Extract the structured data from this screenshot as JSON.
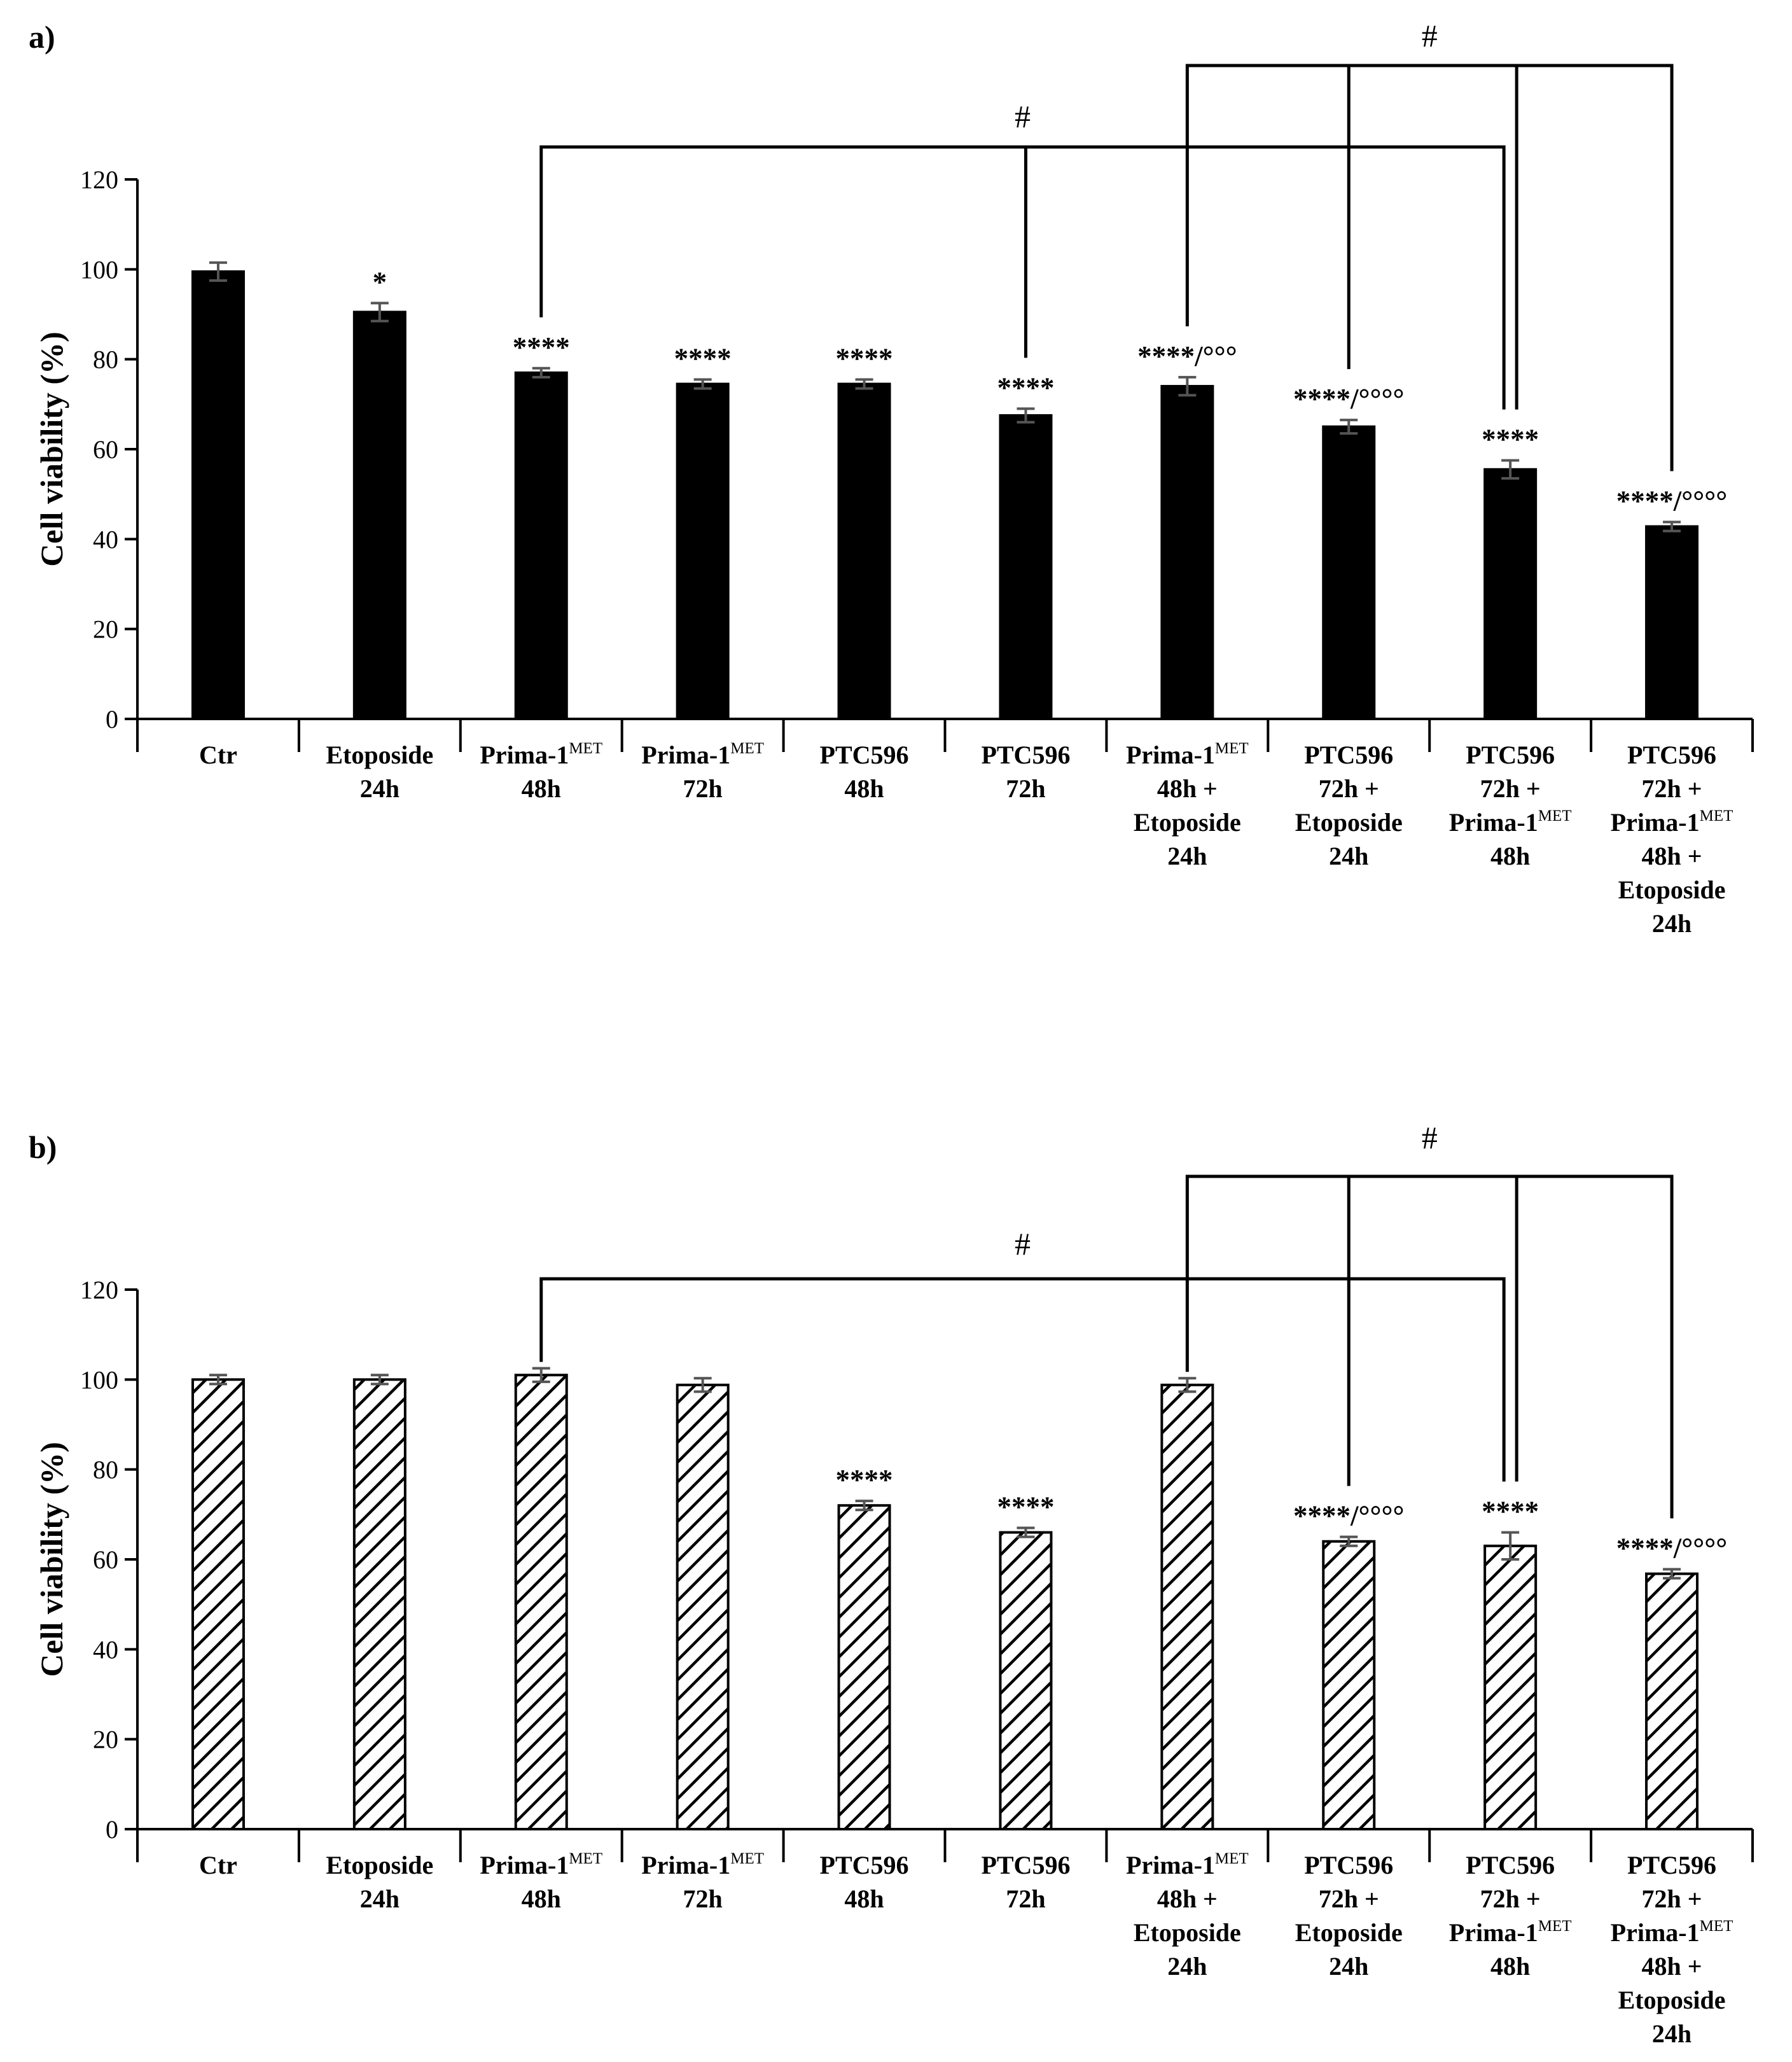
{
  "colors": {
    "solid_bar": "#000000",
    "hatch_bar_fill": "#ffffff",
    "hatch_stroke": "#000000",
    "error_bar": "#555555"
  },
  "chart_data": [
    {
      "type": "bar",
      "panel_label": "a)",
      "pattern": "solid",
      "ylabel": "Cell viability (%)",
      "ylim": [
        0,
        120
      ],
      "yticks": [
        0,
        20,
        40,
        60,
        80,
        100,
        120
      ],
      "grid": false,
      "categories": [
        [
          {
            "text": "Ctr"
          }
        ],
        [
          {
            "text": "Etoposide"
          },
          {
            "text": "24h"
          }
        ],
        [
          {
            "text": "Prima-1",
            "sup": "MET"
          },
          {
            "text": "48h"
          }
        ],
        [
          {
            "text": "Prima-1",
            "sup": "MET"
          },
          {
            "text": "72h"
          }
        ],
        [
          {
            "text": "PTC596"
          },
          {
            "text": "48h"
          }
        ],
        [
          {
            "text": "PTC596"
          },
          {
            "text": "72h"
          }
        ],
        [
          {
            "text": "Prima-1",
            "sup": "MET"
          },
          {
            "text": "48h +"
          },
          {
            "text": "Etoposide"
          },
          {
            "text": "24h"
          }
        ],
        [
          {
            "text": "PTC596"
          },
          {
            "text": "72h +"
          },
          {
            "text": "Etoposide"
          },
          {
            "text": "24h"
          }
        ],
        [
          {
            "text": "PTC596"
          },
          {
            "text": "72h +"
          },
          {
            "text": "Prima-1",
            "sup": "MET"
          },
          {
            "text": "48h"
          }
        ],
        [
          {
            "text": "PTC596"
          },
          {
            "text": "72h +"
          },
          {
            "text": "Prima-1",
            "sup": "MET"
          },
          {
            "text": "48h +"
          },
          {
            "text": "Etoposide"
          },
          {
            "text": "24h"
          }
        ]
      ],
      "values": [
        99.5,
        90.5,
        77,
        74.5,
        74.5,
        67.5,
        74,
        65,
        55.5,
        42.8
      ],
      "errors": [
        2,
        2,
        1,
        1,
        1,
        1.5,
        2,
        1.5,
        2,
        1
      ],
      "significance": [
        "",
        "*",
        "****",
        "****",
        "****",
        "****",
        "****/°°°",
        "****/°°°°",
        "****",
        "****/°°°°"
      ],
      "comparison_brackets": [
        {
          "label": "#",
          "from": 2,
          "to": 8,
          "middle": [
            5
          ]
        },
        {
          "label": "#",
          "from": 6,
          "to": 9,
          "middle": [
            7,
            8
          ]
        }
      ]
    },
    {
      "type": "bar",
      "panel_label": "b)",
      "pattern": "hatched",
      "ylabel": "Cell viability (%)",
      "ylim": [
        0,
        120
      ],
      "yticks": [
        0,
        20,
        40,
        60,
        80,
        100,
        120
      ],
      "grid": false,
      "categories": [
        [
          {
            "text": "Ctr"
          }
        ],
        [
          {
            "text": "Etoposide"
          },
          {
            "text": "24h"
          }
        ],
        [
          {
            "text": "Prima-1",
            "sup": "MET"
          },
          {
            "text": "48h"
          }
        ],
        [
          {
            "text": "Prima-1",
            "sup": "MET"
          },
          {
            "text": "72h"
          }
        ],
        [
          {
            "text": "PTC596"
          },
          {
            "text": "48h"
          }
        ],
        [
          {
            "text": "PTC596"
          },
          {
            "text": "72h"
          }
        ],
        [
          {
            "text": "Prima-1",
            "sup": "MET"
          },
          {
            "text": "48h +"
          },
          {
            "text": "Etoposide"
          },
          {
            "text": "24h"
          }
        ],
        [
          {
            "text": "PTC596"
          },
          {
            "text": "72h +"
          },
          {
            "text": "Etoposide"
          },
          {
            "text": "24h"
          }
        ],
        [
          {
            "text": "PTC596"
          },
          {
            "text": "72h +"
          },
          {
            "text": "Prima-1",
            "sup": "MET"
          },
          {
            "text": "48h"
          }
        ],
        [
          {
            "text": "PTC596"
          },
          {
            "text": "72h +"
          },
          {
            "text": "Prima-1",
            "sup": "MET"
          },
          {
            "text": "48h +"
          },
          {
            "text": "Etoposide"
          },
          {
            "text": "24h"
          }
        ]
      ],
      "values": [
        100,
        100,
        101,
        98.8,
        72,
        66,
        98.8,
        64,
        63,
        56.8
      ],
      "errors": [
        1,
        1,
        1.5,
        1.5,
        1,
        1,
        1.5,
        1,
        3,
        1
      ],
      "significance": [
        "",
        "",
        "",
        "",
        "****",
        "****",
        "",
        "****/°°°°",
        "****",
        "****/°°°°"
      ],
      "comparison_brackets": [
        {
          "label": "#",
          "from": 2,
          "to": 8,
          "middle": []
        },
        {
          "label": "#",
          "from": 6,
          "to": 9,
          "middle": [
            7,
            8
          ]
        }
      ]
    }
  ]
}
